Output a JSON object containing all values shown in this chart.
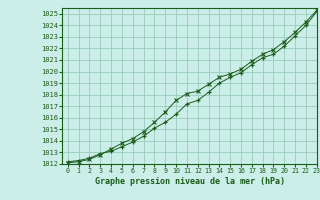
{
  "xlabel": "Graphe pression niveau de la mer (hPa)",
  "ylim": [
    1012,
    1025.5
  ],
  "xlim": [
    -0.5,
    23
  ],
  "yticks": [
    1012,
    1013,
    1014,
    1015,
    1016,
    1017,
    1018,
    1019,
    1020,
    1021,
    1022,
    1023,
    1024,
    1025
  ],
  "xticks": [
    0,
    1,
    2,
    3,
    4,
    5,
    6,
    7,
    8,
    9,
    10,
    11,
    12,
    13,
    14,
    15,
    16,
    17,
    18,
    19,
    20,
    21,
    22,
    23
  ],
  "bg_color": "#cceee8",
  "grid_color": "#99ccbb",
  "line_color": "#1a5c1a",
  "series1": [
    [
      0,
      1012.2
    ],
    [
      1,
      1012.3
    ],
    [
      2,
      1012.5
    ],
    [
      3,
      1012.9
    ],
    [
      4,
      1013.1
    ],
    [
      5,
      1013.5
    ],
    [
      6,
      1013.9
    ],
    [
      7,
      1014.4
    ],
    [
      8,
      1015.1
    ],
    [
      9,
      1015.6
    ],
    [
      10,
      1016.3
    ],
    [
      11,
      1017.2
    ],
    [
      12,
      1017.5
    ],
    [
      13,
      1018.2
    ],
    [
      14,
      1019.0
    ],
    [
      15,
      1019.5
    ],
    [
      16,
      1019.9
    ],
    [
      17,
      1020.6
    ],
    [
      18,
      1021.2
    ],
    [
      19,
      1021.5
    ],
    [
      20,
      1022.2
    ],
    [
      21,
      1023.1
    ],
    [
      22,
      1024.0
    ],
    [
      23,
      1025.2
    ]
  ],
  "series2": [
    [
      0,
      1012.1
    ],
    [
      1,
      1012.2
    ],
    [
      2,
      1012.4
    ],
    [
      3,
      1012.8
    ],
    [
      4,
      1013.3
    ],
    [
      5,
      1013.8
    ],
    [
      6,
      1014.2
    ],
    [
      7,
      1014.8
    ],
    [
      8,
      1015.6
    ],
    [
      9,
      1016.5
    ],
    [
      10,
      1017.5
    ],
    [
      11,
      1018.1
    ],
    [
      12,
      1018.3
    ],
    [
      13,
      1018.9
    ],
    [
      14,
      1019.5
    ],
    [
      15,
      1019.8
    ],
    [
      16,
      1020.2
    ],
    [
      17,
      1020.9
    ],
    [
      18,
      1021.5
    ],
    [
      19,
      1021.9
    ],
    [
      20,
      1022.6
    ],
    [
      21,
      1023.4
    ],
    [
      22,
      1024.3
    ],
    [
      23,
      1025.3
    ]
  ]
}
